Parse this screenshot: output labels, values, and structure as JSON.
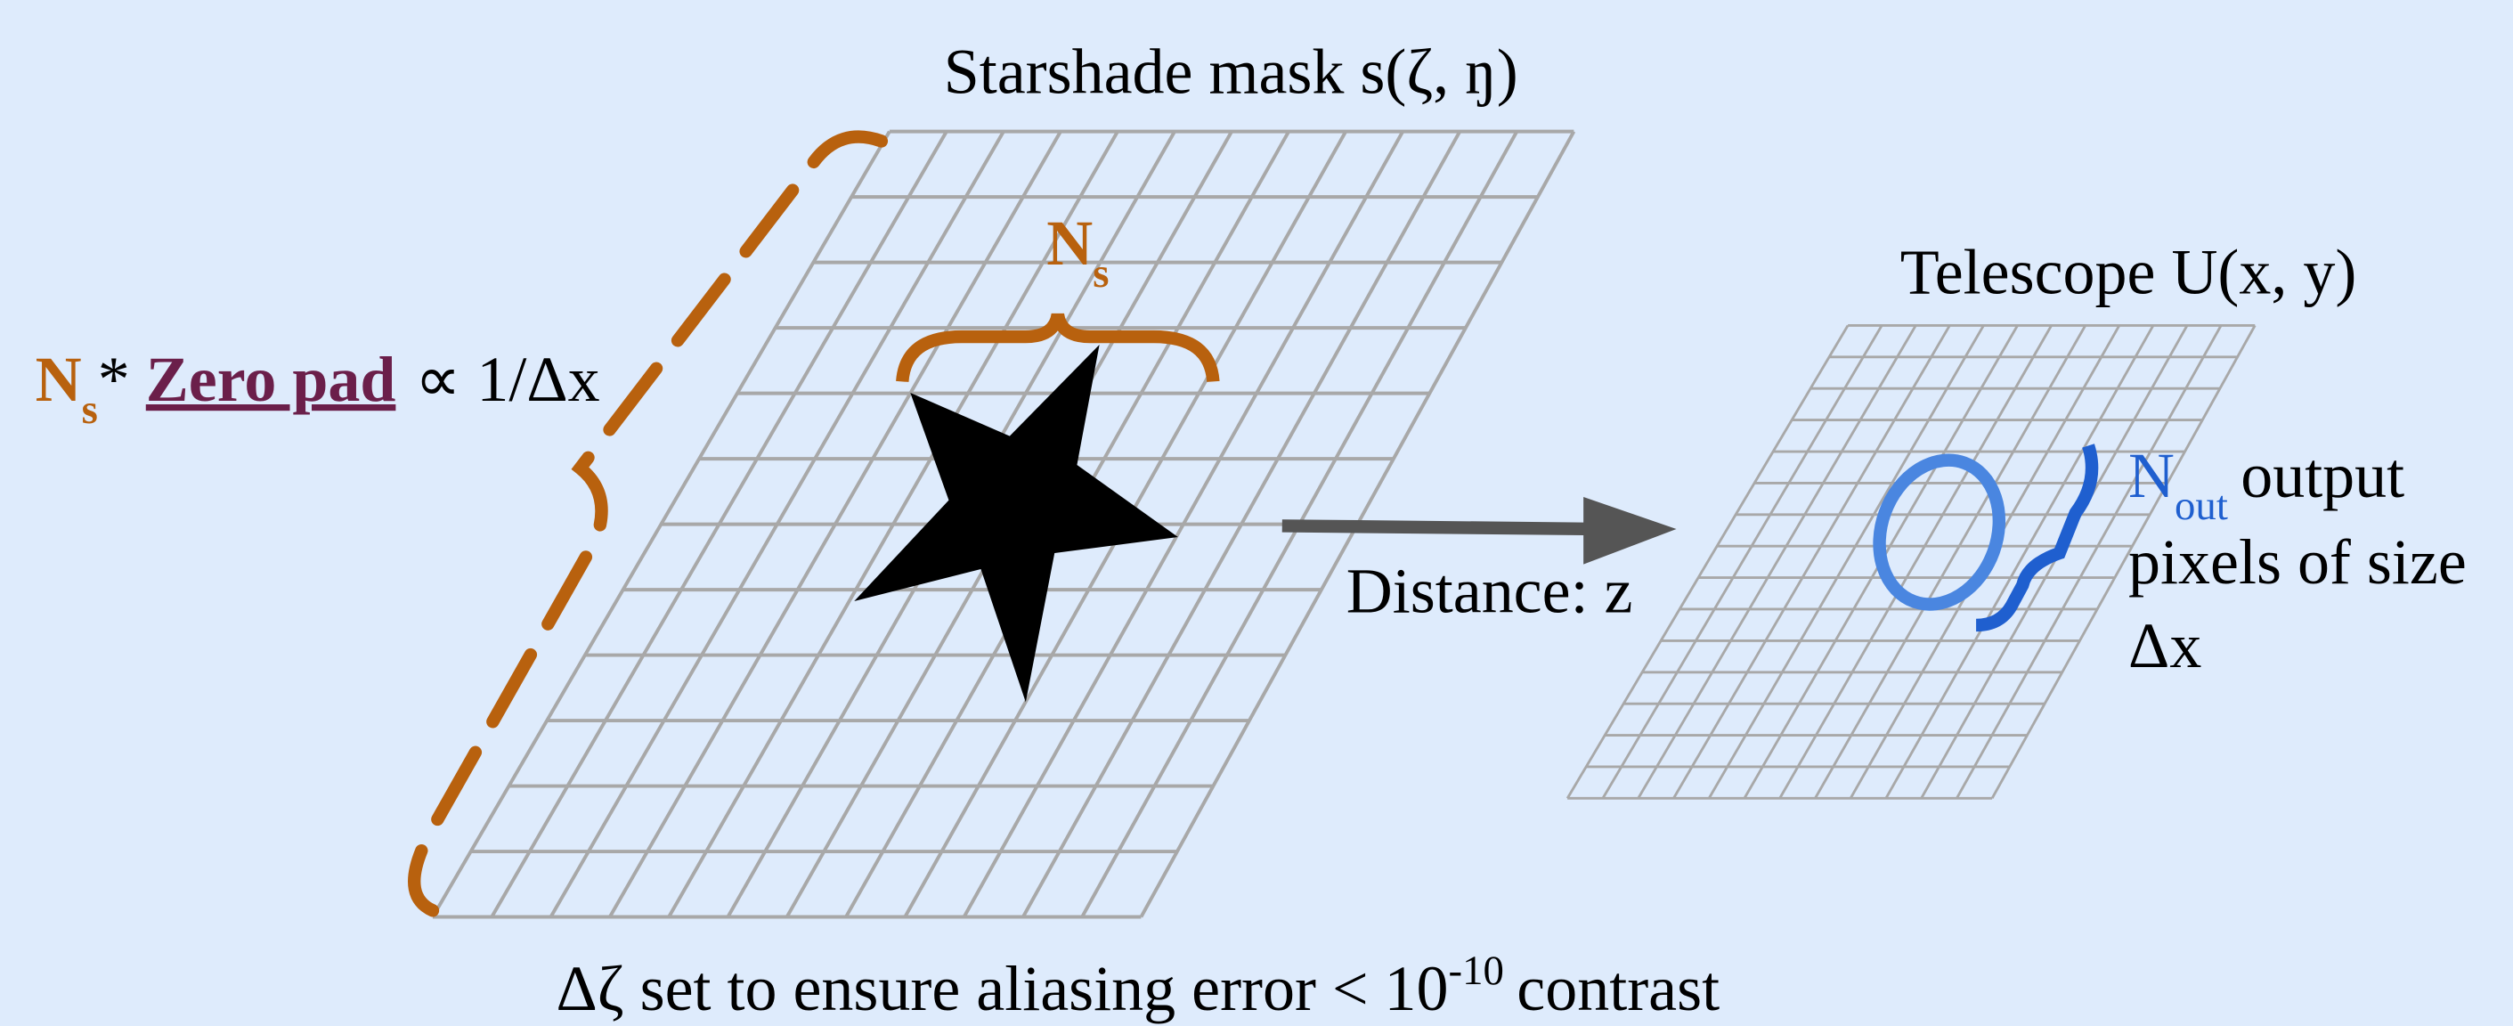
{
  "mask_title": "Starshade mask s(ζ, ŋ)",
  "telescope_title": "Telescope U(x, y)",
  "ns_label": {
    "main": "N",
    "sub": "s"
  },
  "zero_pad_label": {
    "n": "N",
    "sub": "s",
    "star": "*",
    "link": "Zero pad",
    "rest": "∝ 1/Δx"
  },
  "distance": "Distance: z",
  "output_label": {
    "n": "N",
    "sub": "out",
    "line1": "output",
    "line2": "pixels of size",
    "line3": "Δx"
  },
  "caption": {
    "before": "Δζ set to ensure aliasing error < 10",
    "sup": "-10",
    "after": "contrast"
  }
}
